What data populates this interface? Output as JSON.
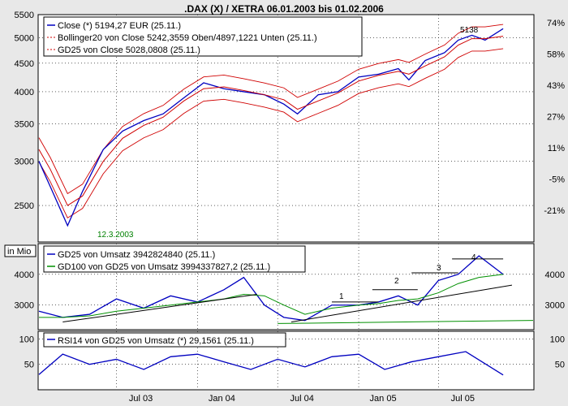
{
  "chart_data": [
    {
      "panel": "price",
      "type": "line",
      "title": ".DAX (X) / XETRA 06.01.2003 bis 01.02.2006",
      "scale": "log",
      "ylim": [
        2150,
        5500
      ],
      "grid": true,
      "legend_position": "top-left",
      "yticks_left": [
        "2500",
        "3000",
        "3500",
        "4000",
        "4500",
        "5000",
        "5500"
      ],
      "yticks_right": [
        "74%",
        "58%",
        "43%",
        "27%",
        "11%",
        "-5%",
        "-21%"
      ],
      "legend": [
        "Close (*) 5194,27 EUR (25.11.)",
        "Bollinger20 von Close 5242,3559 Oben/4897,1221 Unten (25.11.)",
        "GD25 von Close 5028,0808 (25.11.)"
      ],
      "annotations": {
        "high": "5138",
        "low": "12.3.2003"
      },
      "x": [
        "2003-01-06",
        "2003-02-01",
        "2003-03-12",
        "2003-04-15",
        "2003-06-01",
        "2003-07-15",
        "2003-09-01",
        "2003-10-15",
        "2003-12-01",
        "2004-01-15",
        "2004-03-01",
        "2004-04-15",
        "2004-06-01",
        "2004-07-15",
        "2004-08-15",
        "2004-10-01",
        "2004-11-15",
        "2005-01-01",
        "2005-02-15",
        "2005-04-01",
        "2005-04-25",
        "2005-06-01",
        "2005-07-15",
        "2005-08-15",
        "2005-09-15",
        "2005-10-15",
        "2005-11-25"
      ],
      "series": [
        {
          "name": "Close",
          "color": "#0000c0",
          "values": [
            3000,
            2700,
            2300,
            2650,
            3150,
            3400,
            3550,
            3650,
            3900,
            4150,
            4050,
            4000,
            3950,
            3800,
            3650,
            3950,
            4000,
            4250,
            4300,
            4400,
            4200,
            4550,
            4700,
            4950,
            5050,
            4950,
            5190
          ]
        },
        {
          "name": "GD25",
          "color": "#d00000",
          "values": [
            3150,
            2900,
            2500,
            2600,
            3000,
            3300,
            3480,
            3600,
            3850,
            4050,
            4080,
            4020,
            3950,
            3870,
            3720,
            3850,
            3980,
            4180,
            4280,
            4350,
            4300,
            4450,
            4620,
            4850,
            4980,
            4980,
            5030
          ]
        }
      ]
    },
    {
      "panel": "volume",
      "type": "line",
      "axis_unit_label": "in Mio",
      "ylim": [
        2200,
        5000
      ],
      "yticks": [
        "3000",
        "4000"
      ],
      "legend": [
        "GD25 von Umsatz 3942824840 (25.11.)",
        "GD100 von GD25 von Umsatz 3994337827,2 (25.11.)"
      ],
      "wave_labels": [
        "1",
        "2",
        "3",
        "4"
      ],
      "x": [
        "2003-01-06",
        "2003-03-01",
        "2003-05-01",
        "2003-07-01",
        "2003-09-01",
        "2003-11-01",
        "2004-01-01",
        "2004-03-01",
        "2004-04-15",
        "2004-06-01",
        "2004-07-15",
        "2004-09-01",
        "2004-11-01",
        "2005-01-01",
        "2005-02-15",
        "2005-04-01",
        "2005-05-15",
        "2005-07-01",
        "2005-08-15",
        "2005-10-01",
        "2005-11-25"
      ],
      "series": [
        {
          "name": "GD25 von Umsatz",
          "color": "#0000c0",
          "values": [
            2800,
            2600,
            2700,
            3200,
            2900,
            3300,
            3100,
            3500,
            3900,
            3000,
            2600,
            2500,
            3000,
            3000,
            3100,
            3300,
            3000,
            3800,
            4000,
            4600,
            4000
          ]
        },
        {
          "name": "GD100 von GD25 von Umsatz",
          "color": "#009000",
          "values": [
            2600,
            2600,
            2650,
            2800,
            2900,
            3000,
            3100,
            3200,
            3350,
            3300,
            3000,
            2700,
            2900,
            3000,
            3050,
            3150,
            3200,
            3400,
            3700,
            3900,
            4000
          ]
        }
      ]
    },
    {
      "panel": "rsi",
      "type": "line",
      "ylim": [
        0,
        115
      ],
      "yticks": [
        "50",
        "100"
      ],
      "legend": [
        "RSI14 von GD25 von Umsatz (*) 29,1561 (25.11.)"
      ],
      "x": [
        "2003-01-06",
        "2003-03-01",
        "2003-05-01",
        "2003-07-01",
        "2003-09-01",
        "2003-11-01",
        "2004-01-01",
        "2004-03-01",
        "2004-05-01",
        "2004-07-01",
        "2004-09-01",
        "2004-11-01",
        "2005-01-01",
        "2005-03-01",
        "2005-05-01",
        "2005-07-01",
        "2005-09-01",
        "2005-11-25"
      ],
      "series": [
        {
          "name": "RSI14",
          "color": "#0000c0",
          "values": [
            30,
            70,
            50,
            60,
            40,
            65,
            70,
            55,
            40,
            60,
            45,
            65,
            70,
            40,
            55,
            65,
            75,
            29
          ]
        }
      ]
    }
  ],
  "xaxis": {
    "labels": [
      "Jul 03",
      "Jan 04",
      "Jul 04",
      "Jan 05",
      "Jul 05"
    ]
  }
}
